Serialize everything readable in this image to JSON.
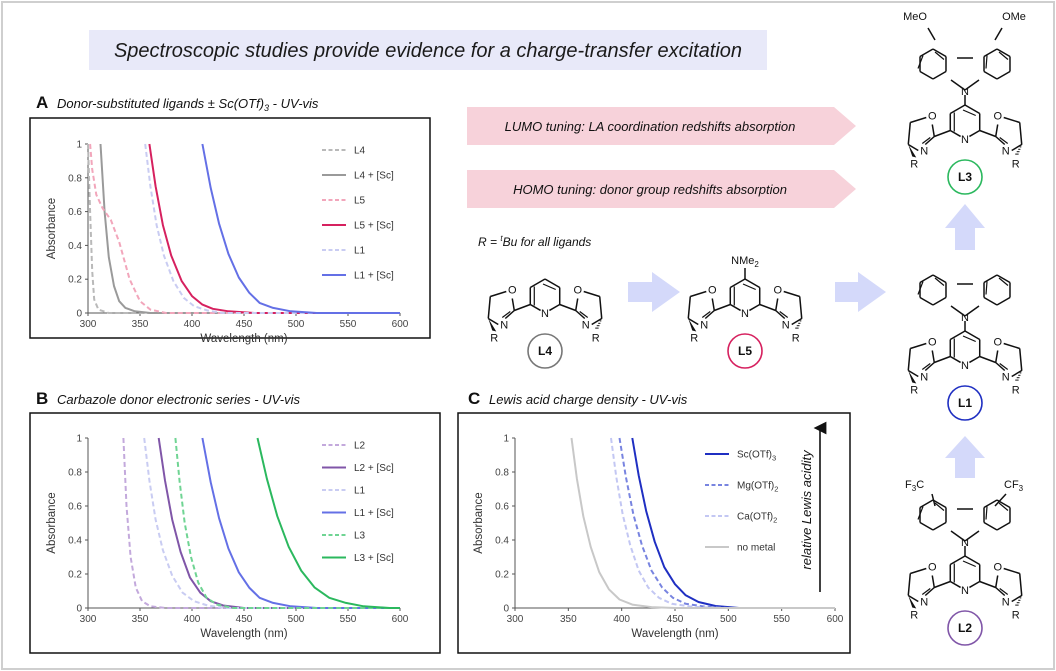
{
  "header": {
    "title": "Spectroscopic studies provide evidence for a charge-transfer excitation"
  },
  "colors": {
    "L4": "#9a9a9a",
    "L5": "#d6215f",
    "L1": "#6470e6",
    "L2": "#8056a8",
    "L3": "#2bb85e",
    "Sc": "#1f2fc2",
    "Mg": "#7884e0",
    "Ca": "#b9bdf0",
    "nometal": "#c8c8c8",
    "arrow": "#f7d2da",
    "bluearrow": "#d4d9fa"
  },
  "arrows": {
    "lumo": "LUMO tuning: LA coordination redshifts absorption",
    "homo": "HOMO tuning: donor group redshifts absorption"
  },
  "r_group_note": {
    "prefix": "R = ",
    "sup": "t",
    "suffix": "Bu for all ligands"
  },
  "ligands": {
    "L4": {
      "label": "L4"
    },
    "L5": {
      "label": "L5",
      "substituent": "NMe",
      "sub": "2"
    },
    "L1": {
      "label": "L1"
    },
    "L3": {
      "label": "L3",
      "substituent": "MeO",
      "substituent2": "OMe"
    },
    "L2": {
      "label": "L2",
      "substituent": "F",
      "sub": "3",
      "subC": "C",
      "substituent2": "CF",
      "sub2": "3"
    }
  },
  "atoms": {
    "O": "O",
    "N": "N",
    "R": "R"
  },
  "panels": {
    "A": {
      "letter": "A",
      "title": "Donor-substituted ligands ± Sc(OTf)",
      "title_sub": "3",
      "title_suffix": " - UV-vis"
    },
    "B": {
      "letter": "B",
      "title": "Carbazole donor electronic series - UV-vis"
    },
    "C": {
      "letter": "C",
      "title": "Lewis acid charge density - UV-vis",
      "side_label": "relative Lewis acidity"
    }
  },
  "chart_data": [
    {
      "id": "A",
      "type": "line",
      "xlabel": "Wavelength (nm)",
      "ylabel": "Absorbance",
      "xlim": [
        300,
        600
      ],
      "ylim": [
        0,
        1
      ],
      "xticks": [
        300,
        350,
        400,
        450,
        500,
        550,
        600
      ],
      "yticks": [
        0,
        0.2,
        0.4,
        0.6,
        0.8,
        1
      ],
      "series": [
        {
          "name": "L4",
          "color": "#b9b9b9",
          "dash": true,
          "points": [
            [
              300,
              1.0
            ],
            [
              302,
              0.6
            ],
            [
              304,
              0.25
            ],
            [
              306,
              0.08
            ],
            [
              310,
              0.02
            ],
            [
              320,
              0.0
            ],
            [
              600,
              0.0
            ]
          ]
        },
        {
          "name": "L4 + [Sc]",
          "color": "#9a9a9a",
          "dash": false,
          "points": [
            [
              312,
              1.0
            ],
            [
              316,
              0.6
            ],
            [
              320,
              0.33
            ],
            [
              325,
              0.16
            ],
            [
              330,
              0.07
            ],
            [
              336,
              0.03
            ],
            [
              345,
              0.01
            ],
            [
              360,
              0.0
            ],
            [
              600,
              0.0
            ]
          ]
        },
        {
          "name": "L5",
          "color": "#f2a6bb",
          "dash": true,
          "points": [
            [
              302,
              1.0
            ],
            [
              304,
              0.85
            ],
            [
              308,
              0.7
            ],
            [
              314,
              0.62
            ],
            [
              322,
              0.55
            ],
            [
              330,
              0.42
            ],
            [
              340,
              0.2
            ],
            [
              350,
              0.07
            ],
            [
              360,
              0.02
            ],
            [
              375,
              0.0
            ],
            [
              600,
              0.0
            ]
          ]
        },
        {
          "name": "L5 + [Sc]",
          "color": "#d6215f",
          "dash": false,
          "points": [
            [
              359,
              1.0
            ],
            [
              365,
              0.75
            ],
            [
              372,
              0.52
            ],
            [
              380,
              0.34
            ],
            [
              390,
              0.19
            ],
            [
              400,
              0.1
            ],
            [
              410,
              0.05
            ],
            [
              420,
              0.025
            ],
            [
              435,
              0.01
            ],
            [
              460,
              0.0
            ],
            [
              600,
              0.0
            ]
          ]
        },
        {
          "name": "L1",
          "color": "#c9ccf2",
          "dash": true,
          "points": [
            [
              355,
              1.0
            ],
            [
              360,
              0.75
            ],
            [
              366,
              0.52
            ],
            [
              373,
              0.34
            ],
            [
              382,
              0.19
            ],
            [
              392,
              0.09
            ],
            [
              402,
              0.04
            ],
            [
              415,
              0.015
            ],
            [
              430,
              0.0
            ],
            [
              600,
              0.0
            ]
          ]
        },
        {
          "name": "L1 + [Sc]",
          "color": "#6470e6",
          "dash": false,
          "points": [
            [
              410,
              1.0
            ],
            [
              418,
              0.74
            ],
            [
              426,
              0.53
            ],
            [
              435,
              0.35
            ],
            [
              445,
              0.21
            ],
            [
              455,
              0.12
            ],
            [
              465,
              0.06
            ],
            [
              478,
              0.03
            ],
            [
              495,
              0.01
            ],
            [
              520,
              0.0
            ],
            [
              600,
              0.0
            ]
          ]
        }
      ]
    },
    {
      "id": "B",
      "type": "line",
      "xlabel": "Wavelength (nm)",
      "ylabel": "Absorbance",
      "xlim": [
        300,
        600
      ],
      "ylim": [
        0,
        1
      ],
      "xticks": [
        300,
        350,
        400,
        450,
        500,
        550,
        600
      ],
      "yticks": [
        0,
        0.2,
        0.4,
        0.6,
        0.8,
        1
      ],
      "series": [
        {
          "name": "L2",
          "color": "#c3a9dc",
          "dash": true,
          "points": [
            [
              334,
              1.0
            ],
            [
              337,
              0.6
            ],
            [
              341,
              0.3
            ],
            [
              346,
              0.12
            ],
            [
              352,
              0.04
            ],
            [
              360,
              0.01
            ],
            [
              375,
              0.0
            ],
            [
              600,
              0.0
            ]
          ]
        },
        {
          "name": "L2 + [Sc]",
          "color": "#8056a8",
          "dash": false,
          "points": [
            [
              368,
              1.0
            ],
            [
              374,
              0.75
            ],
            [
              381,
              0.52
            ],
            [
              389,
              0.33
            ],
            [
              398,
              0.18
            ],
            [
              408,
              0.09
            ],
            [
              418,
              0.04
            ],
            [
              430,
              0.015
            ],
            [
              450,
              0.0
            ],
            [
              600,
              0.0
            ]
          ]
        },
        {
          "name": "L1",
          "color": "#c9ccf2",
          "dash": true,
          "points": [
            [
              354,
              1.0
            ],
            [
              359,
              0.75
            ],
            [
              365,
              0.52
            ],
            [
              372,
              0.34
            ],
            [
              381,
              0.19
            ],
            [
              391,
              0.09
            ],
            [
              402,
              0.04
            ],
            [
              415,
              0.015
            ],
            [
              432,
              0.0
            ],
            [
              600,
              0.0
            ]
          ]
        },
        {
          "name": "L1 + [Sc]",
          "color": "#6470e6",
          "dash": false,
          "points": [
            [
              410,
              1.0
            ],
            [
              418,
              0.74
            ],
            [
              426,
              0.53
            ],
            [
              435,
              0.35
            ],
            [
              445,
              0.21
            ],
            [
              455,
              0.12
            ],
            [
              465,
              0.06
            ],
            [
              478,
              0.03
            ],
            [
              495,
              0.01
            ],
            [
              520,
              0.0
            ],
            [
              600,
              0.0
            ]
          ]
        },
        {
          "name": "L3",
          "color": "#6fd493",
          "dash": true,
          "points": [
            [
              384,
              1.0
            ],
            [
              388,
              0.75
            ],
            [
              393,
              0.5
            ],
            [
              399,
              0.3
            ],
            [
              406,
              0.15
            ],
            [
              414,
              0.06
            ],
            [
              424,
              0.02
            ],
            [
              440,
              0.0
            ],
            [
              600,
              0.0
            ]
          ]
        },
        {
          "name": "L3 + [Sc]",
          "color": "#2bb85e",
          "dash": false,
          "points": [
            [
              463,
              1.0
            ],
            [
              472,
              0.76
            ],
            [
              482,
              0.54
            ],
            [
              493,
              0.36
            ],
            [
              505,
              0.22
            ],
            [
              518,
              0.12
            ],
            [
              532,
              0.06
            ],
            [
              548,
              0.03
            ],
            [
              565,
              0.01
            ],
            [
              590,
              0.0
            ],
            [
              600,
              0.0
            ]
          ]
        }
      ]
    },
    {
      "id": "C",
      "type": "line",
      "xlabel": "Wavelength (nm)",
      "ylabel": "Absorbance",
      "xlim": [
        300,
        600
      ],
      "ylim": [
        0,
        1
      ],
      "xticks": [
        300,
        350,
        400,
        450,
        500,
        550,
        600
      ],
      "yticks": [
        0,
        0.2,
        0.4,
        0.6,
        0.8,
        1
      ],
      "series": [
        {
          "name": "Sc(OTf)",
          "sub": "3",
          "color": "#1f2fc2",
          "dash": false,
          "points": [
            [
              410,
              1.0
            ],
            [
              416,
              0.78
            ],
            [
              423,
              0.57
            ],
            [
              431,
              0.39
            ],
            [
              440,
              0.24
            ],
            [
              450,
              0.14
            ],
            [
              460,
              0.075
            ],
            [
              472,
              0.035
            ],
            [
              488,
              0.012
            ],
            [
              510,
              0.0
            ],
            [
              600,
              0.0
            ]
          ]
        },
        {
          "name": "Mg(OTf)",
          "sub": "2",
          "color": "#7884e0",
          "dash": true,
          "points": [
            [
              398,
              1.0
            ],
            [
              404,
              0.77
            ],
            [
              411,
              0.55
            ],
            [
              419,
              0.37
            ],
            [
              428,
              0.22
            ],
            [
              438,
              0.12
            ],
            [
              448,
              0.06
            ],
            [
              460,
              0.025
            ],
            [
              478,
              0.008
            ],
            [
              500,
              0.0
            ],
            [
              600,
              0.0
            ]
          ]
        },
        {
          "name": "Ca(OTf)",
          "sub": "2",
          "color": "#c3c7f3",
          "dash": true,
          "points": [
            [
              390,
              1.0
            ],
            [
              395,
              0.77
            ],
            [
              401,
              0.55
            ],
            [
              408,
              0.37
            ],
            [
              416,
              0.22
            ],
            [
              425,
              0.12
            ],
            [
              435,
              0.06
            ],
            [
              447,
              0.025
            ],
            [
              465,
              0.008
            ],
            [
              490,
              0.0
            ],
            [
              600,
              0.0
            ]
          ]
        },
        {
          "name": "no metal",
          "color": "#c8c8c8",
          "dash": false,
          "points": [
            [
              353,
              1.0
            ],
            [
              358,
              0.76
            ],
            [
              364,
              0.54
            ],
            [
              371,
              0.36
            ],
            [
              379,
              0.21
            ],
            [
              388,
              0.11
            ],
            [
              398,
              0.05
            ],
            [
              410,
              0.02
            ],
            [
              428,
              0.005
            ],
            [
              450,
              0.0
            ],
            [
              600,
              0.0
            ]
          ]
        }
      ]
    }
  ]
}
